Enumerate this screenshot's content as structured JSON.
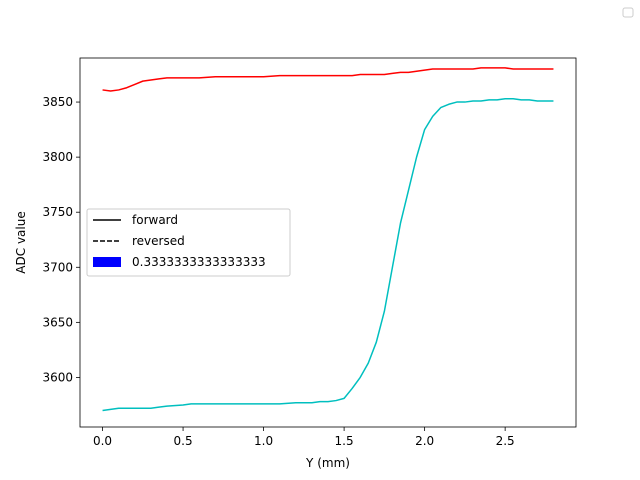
{
  "chart_data": {
    "type": "line",
    "title": "",
    "xlabel": "Y (mm)",
    "ylabel": "ADC value",
    "xlim": [
      -0.14,
      2.94
    ],
    "ylim": [
      3555,
      3890
    ],
    "xticks": [
      0.0,
      0.5,
      1.0,
      1.5,
      2.0,
      2.5
    ],
    "xtick_labels": [
      "0.0",
      "0.5",
      "1.0",
      "1.5",
      "2.0",
      "2.5"
    ],
    "yticks": [
      3600,
      3650,
      3700,
      3750,
      3800,
      3850
    ],
    "ytick_labels": [
      "3600",
      "3650",
      "3700",
      "3750",
      "3800",
      "3850"
    ],
    "grid": false,
    "legend": {
      "placement": "center-left",
      "entries": [
        {
          "label": "forward",
          "style": "solid",
          "color": "#000000"
        },
        {
          "label": "reversed",
          "style": "dashed",
          "color": "#000000"
        },
        {
          "label": "0.3333333333333333",
          "style": "patch",
          "color": "#0000ff"
        }
      ]
    },
    "series": [
      {
        "color": "#ff0000",
        "x": [
          0.0,
          0.05,
          0.1,
          0.15,
          0.2,
          0.25,
          0.3,
          0.35,
          0.4,
          0.5,
          0.6,
          0.7,
          0.8,
          0.9,
          1.0,
          1.1,
          1.2,
          1.3,
          1.4,
          1.5,
          1.55,
          1.6,
          1.65,
          1.7,
          1.75,
          1.8,
          1.85,
          1.9,
          1.95,
          2.0,
          2.05,
          2.1,
          2.15,
          2.2,
          2.25,
          2.3,
          2.35,
          2.4,
          2.45,
          2.5,
          2.55,
          2.6,
          2.65,
          2.7,
          2.75,
          2.8
        ],
        "y": [
          3861,
          3860,
          3861,
          3863,
          3866,
          3869,
          3870,
          3871,
          3872,
          3872,
          3872,
          3873,
          3873,
          3873,
          3873,
          3874,
          3874,
          3874,
          3874,
          3874,
          3874,
          3875,
          3875,
          3875,
          3875,
          3876,
          3877,
          3877,
          3878,
          3879,
          3880,
          3880,
          3880,
          3880,
          3880,
          3880,
          3881,
          3881,
          3881,
          3881,
          3880,
          3880,
          3880,
          3880,
          3880,
          3880
        ]
      },
      {
        "color": "#00bfbf",
        "x": [
          0.0,
          0.05,
          0.1,
          0.15,
          0.2,
          0.3,
          0.35,
          0.4,
          0.5,
          0.55,
          0.6,
          0.7,
          0.8,
          0.9,
          1.0,
          1.1,
          1.2,
          1.3,
          1.35,
          1.4,
          1.45,
          1.5,
          1.55,
          1.6,
          1.65,
          1.7,
          1.75,
          1.8,
          1.85,
          1.9,
          1.95,
          2.0,
          2.05,
          2.1,
          2.15,
          2.2,
          2.25,
          2.3,
          2.35,
          2.4,
          2.45,
          2.5,
          2.55,
          2.6,
          2.65,
          2.7,
          2.75,
          2.8
        ],
        "y": [
          3570,
          3571,
          3572,
          3572,
          3572,
          3572,
          3573,
          3574,
          3575,
          3576,
          3576,
          3576,
          3576,
          3576,
          3576,
          3576,
          3577,
          3577,
          3578,
          3578,
          3579,
          3581,
          3590,
          3600,
          3613,
          3632,
          3660,
          3700,
          3740,
          3770,
          3800,
          3825,
          3837,
          3845,
          3848,
          3850,
          3850,
          3851,
          3851,
          3852,
          3852,
          3853,
          3853,
          3852,
          3852,
          3851,
          3851,
          3851
        ]
      }
    ]
  }
}
